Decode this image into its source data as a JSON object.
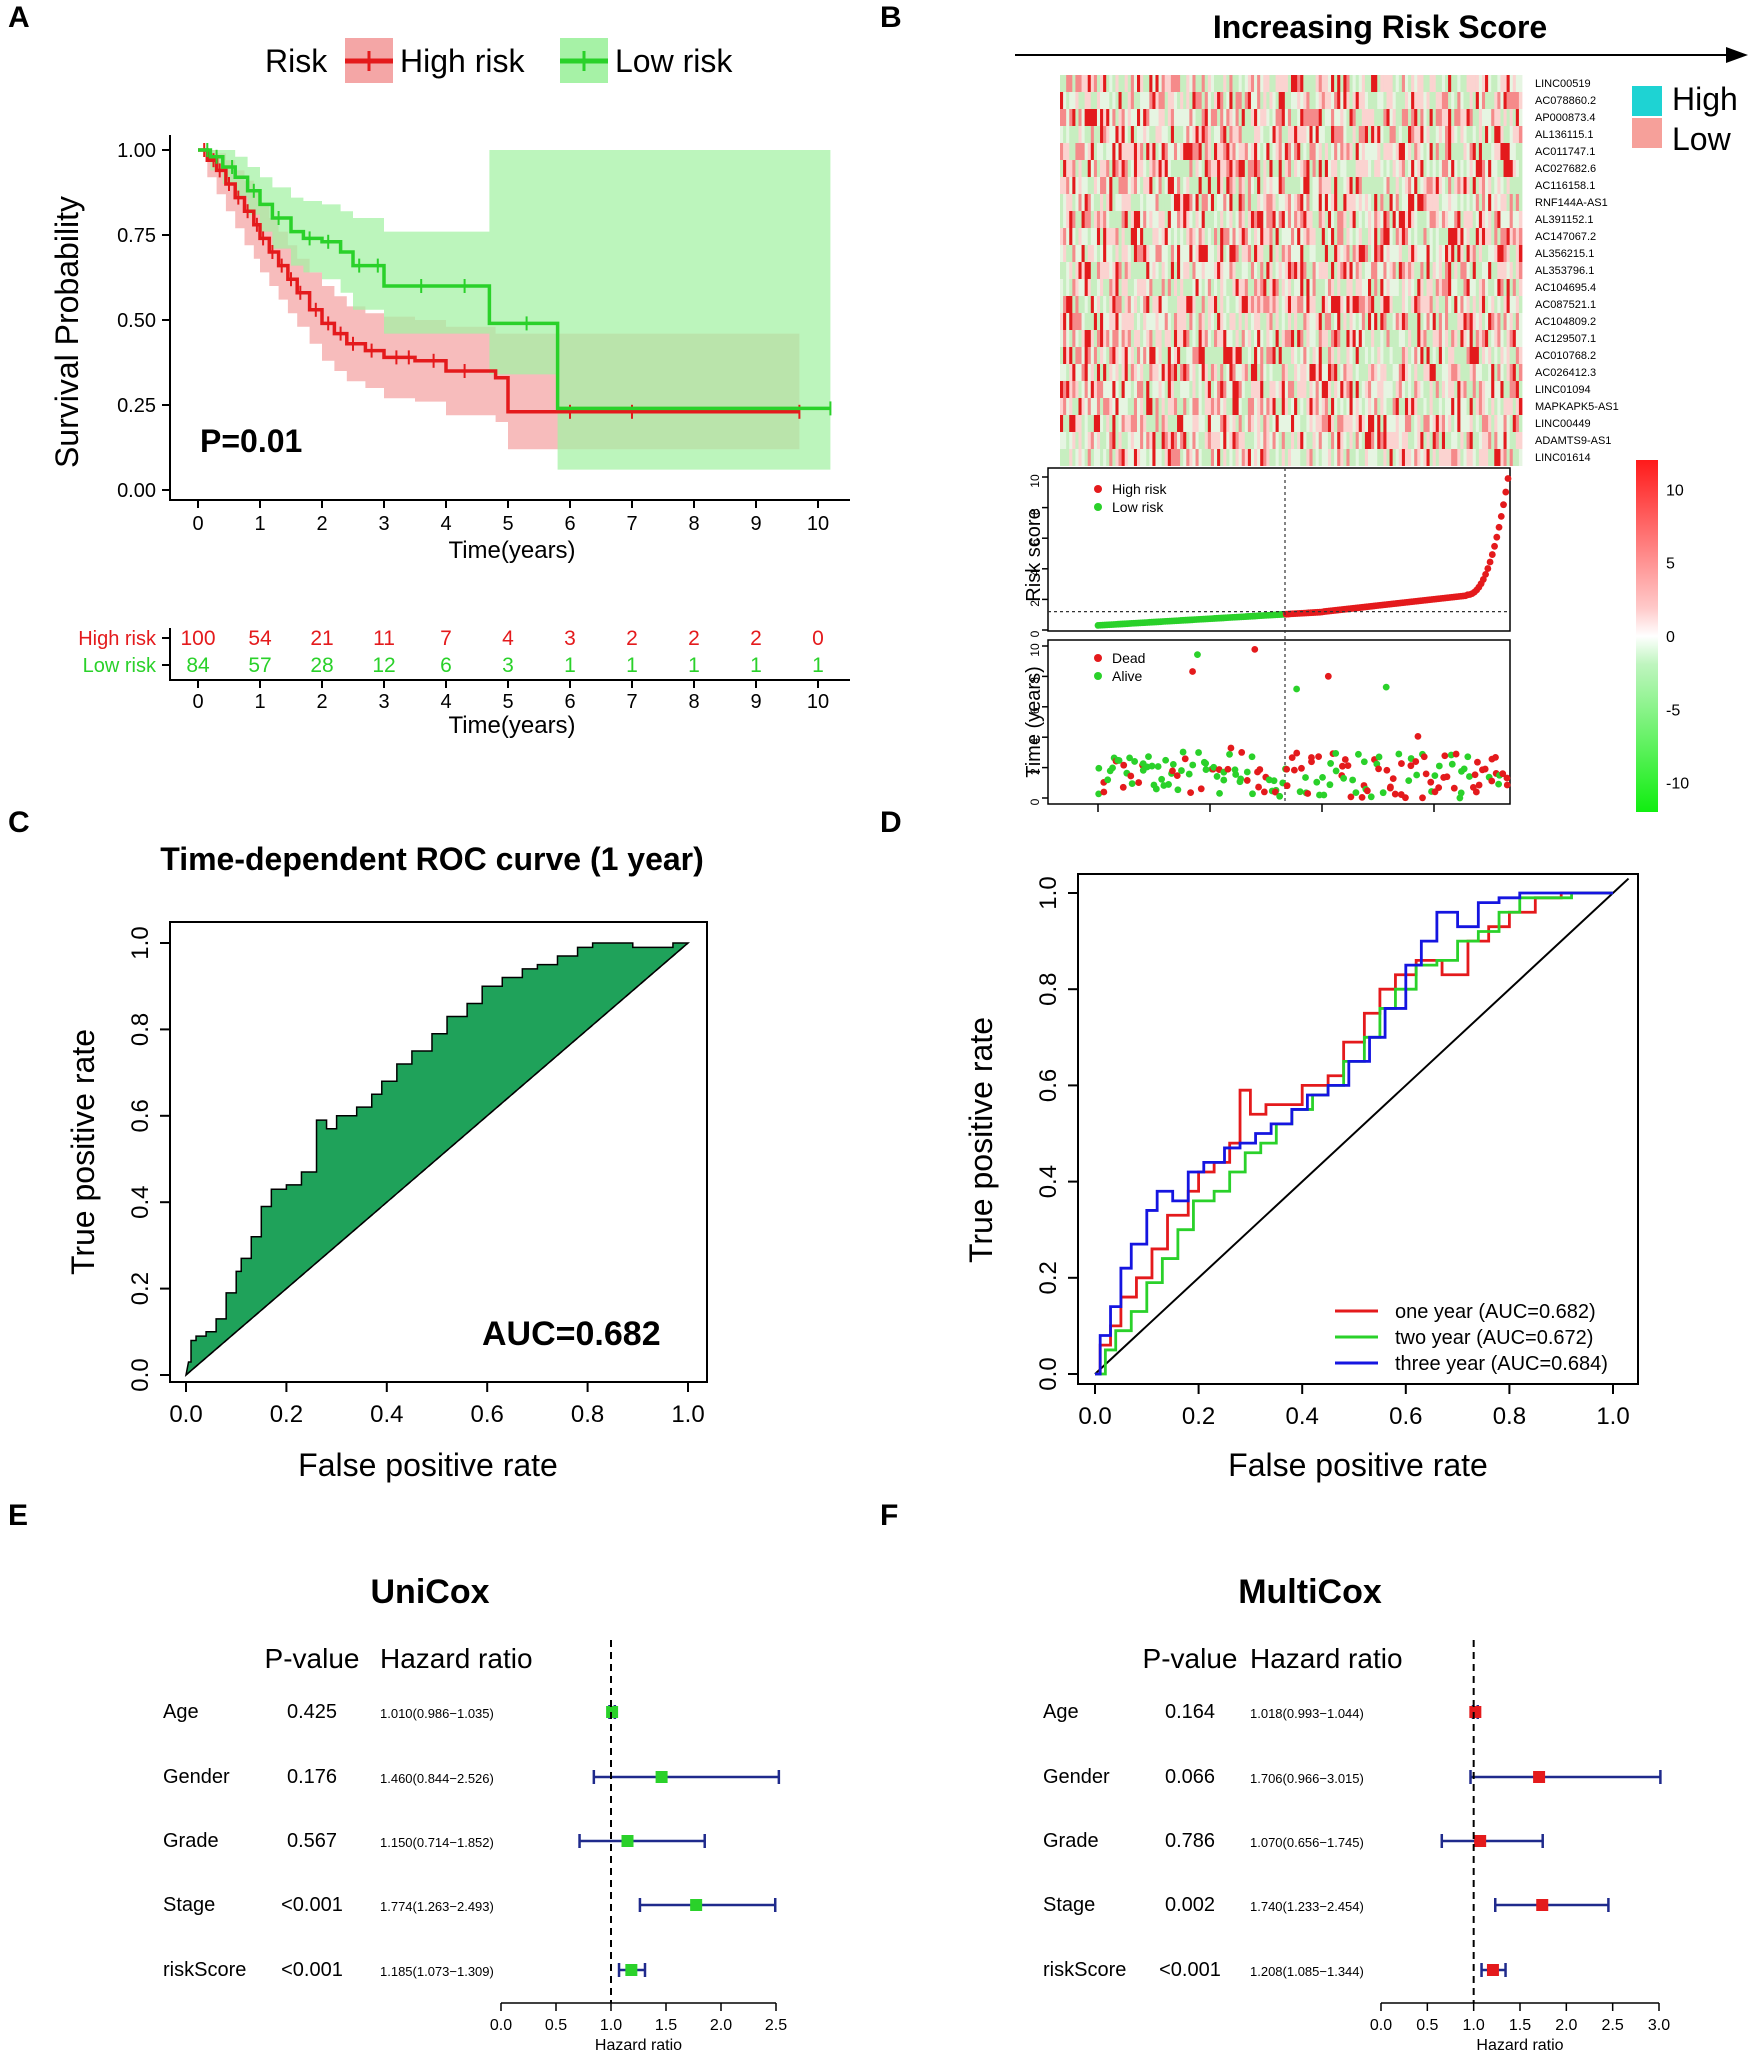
{
  "panel_letters": [
    "A",
    "B",
    "C",
    "D",
    "E",
    "F"
  ],
  "colors": {
    "high": "#e41a1c",
    "high_ci": "#f4a6a6",
    "low": "#2ad12a",
    "low_ci": "#a6f2a6",
    "overlap": "#c0c07a",
    "roc_fill": "#1fa25a",
    "blue": "#1515e0",
    "navy": "#1f2a8c",
    "legend_high": "#1ed3d3",
    "legend_low": "#f6a09a"
  },
  "chart_data": [
    {
      "id": "A",
      "type": "line",
      "title": "",
      "legend": {
        "title": "Risk",
        "entries": [
          "High risk",
          "Low risk"
        ]
      },
      "xlabel": "Time(years)",
      "ylabel": "Survival Probability",
      "xlim": [
        0,
        10
      ],
      "ylim": [
        0,
        1
      ],
      "xticks": [
        0,
        1,
        2,
        3,
        4,
        5,
        6,
        7,
        8,
        9,
        10
      ],
      "yticks": [
        "0.00",
        "0.25",
        "0.50",
        "0.75",
        "1.00"
      ],
      "annotation": "P=0.01",
      "series": [
        {
          "name": "High risk",
          "x": [
            0,
            0.15,
            0.3,
            0.45,
            0.6,
            0.75,
            0.9,
            1.0,
            1.15,
            1.3,
            1.45,
            1.6,
            1.8,
            2.0,
            2.2,
            2.4,
            2.7,
            3.0,
            3.5,
            4.0,
            4.8,
            5.0,
            6.0,
            7.0,
            9.7
          ],
          "y": [
            1.0,
            0.97,
            0.94,
            0.9,
            0.86,
            0.82,
            0.78,
            0.74,
            0.7,
            0.66,
            0.62,
            0.58,
            0.53,
            0.49,
            0.46,
            0.43,
            0.41,
            0.39,
            0.38,
            0.35,
            0.33,
            0.23,
            0.23,
            0.23,
            0.23
          ],
          "ci_lower": [
            1.0,
            0.92,
            0.87,
            0.82,
            0.77,
            0.72,
            0.68,
            0.64,
            0.6,
            0.56,
            0.52,
            0.48,
            0.43,
            0.38,
            0.35,
            0.32,
            0.3,
            0.27,
            0.26,
            0.22,
            0.2,
            0.12,
            0.12,
            0.12,
            0.12
          ],
          "ci_upper": [
            1.0,
            1.0,
            0.99,
            0.97,
            0.94,
            0.91,
            0.88,
            0.84,
            0.8,
            0.76,
            0.72,
            0.68,
            0.64,
            0.6,
            0.57,
            0.54,
            0.52,
            0.51,
            0.5,
            0.48,
            0.46,
            0.46,
            0.46,
            0.46,
            0.46
          ],
          "censor_x": [
            0.1,
            0.25,
            0.35,
            0.5,
            0.65,
            0.8,
            0.95,
            1.05,
            1.2,
            1.35,
            1.5,
            1.65,
            1.9,
            2.1,
            2.3,
            2.5,
            2.8,
            3.2,
            3.4,
            3.8,
            4.3,
            6.0,
            7.0,
            9.7
          ]
        },
        {
          "name": "Low risk",
          "x": [
            0,
            0.2,
            0.4,
            0.6,
            0.8,
            1.0,
            1.2,
            1.5,
            1.7,
            2.0,
            2.3,
            2.5,
            3.0,
            3.5,
            4.0,
            4.7,
            5.0,
            5.8,
            8.0,
            10.2
          ],
          "y": [
            1.0,
            0.98,
            0.95,
            0.92,
            0.88,
            0.84,
            0.8,
            0.76,
            0.74,
            0.73,
            0.7,
            0.66,
            0.6,
            0.6,
            0.6,
            0.49,
            0.49,
            0.24,
            0.24,
            0.24
          ],
          "ci_lower": [
            1.0,
            0.94,
            0.9,
            0.86,
            0.81,
            0.76,
            0.71,
            0.66,
            0.64,
            0.62,
            0.58,
            0.53,
            0.46,
            0.46,
            0.46,
            0.34,
            0.34,
            0.06,
            0.06,
            0.06
          ],
          "ci_upper": [
            1.0,
            1.0,
            1.0,
            0.98,
            0.95,
            0.92,
            0.89,
            0.86,
            0.85,
            0.84,
            0.82,
            0.8,
            0.76,
            0.76,
            0.76,
            1.0,
            1.0,
            1.0,
            1.0,
            1.0
          ],
          "censor_x": [
            0.15,
            0.3,
            0.55,
            0.9,
            1.3,
            1.8,
            2.1,
            2.6,
            2.9,
            3.6,
            4.3,
            5.3,
            10.2
          ]
        }
      ],
      "risk_table": {
        "xlabel": "Time(years)",
        "rows": [
          {
            "name": "High risk",
            "values": [
              100,
              54,
              21,
              11,
              7,
              4,
              3,
              2,
              2,
              2,
              0
            ]
          },
          {
            "name": "Low risk",
            "values": [
              84,
              57,
              28,
              12,
              6,
              3,
              1,
              1,
              1,
              1,
              1
            ]
          }
        ]
      }
    },
    {
      "id": "B",
      "type": "heatmap",
      "title": "Increasing Risk Score",
      "genes": [
        "LINC00519",
        "AC078860.2",
        "AP000873.4",
        "AL136115.1",
        "AC011747.1",
        "AC027682.6",
        "AC116158.1",
        "RNF144A-AS1",
        "AL391152.1",
        "AC147067.2",
        "AL356215.1",
        "AL353796.1",
        "AC104695.4",
        "AC087521.1",
        "AC104809.2",
        "AC129507.1",
        "AC010768.2",
        "AC026412.3",
        "LINC01094",
        "MAPKAPK5-AS1",
        "LINC00449",
        "ADAMTS9-AS1",
        "LINC01614"
      ],
      "legend": [
        "High",
        "Low"
      ],
      "colorbar_ticks": [
        "10",
        "5",
        "0",
        "-5",
        "-10"
      ],
      "colorbar_range": [
        -12,
        12
      ],
      "risk_plot": {
        "ylabel": "Risk score",
        "yticks": [
          0,
          2,
          4,
          6,
          8,
          10
        ],
        "ylim": [
          0,
          10
        ],
        "cutoff": 1.2,
        "legend": [
          "High risk",
          "Low risk"
        ]
      },
      "survival_scatter": {
        "ylabel": "Time (years)",
        "yticks": [
          0,
          2,
          4,
          6,
          8,
          10
        ],
        "ylim": [
          0,
          10
        ],
        "legend": [
          "Dead",
          "Alive"
        ]
      }
    },
    {
      "id": "C",
      "type": "area",
      "title": "Time-dependent ROC curve (1 year)",
      "xlabel": "False positive rate",
      "ylabel": "True positive rate",
      "xlim": [
        0,
        1
      ],
      "ylim": [
        0,
        1
      ],
      "xticks": [
        "0.0",
        "0.2",
        "0.4",
        "0.6",
        "0.8",
        "1.0"
      ],
      "yticks": [
        "0.0",
        "0.2",
        "0.4",
        "0.6",
        "0.8",
        "1.0"
      ],
      "annotation": "AUC=0.682",
      "x": [
        0,
        0.005,
        0.01,
        0.01,
        0.02,
        0.02,
        0.04,
        0.04,
        0.06,
        0.06,
        0.08,
        0.08,
        0.1,
        0.1,
        0.11,
        0.11,
        0.13,
        0.13,
        0.15,
        0.15,
        0.17,
        0.17,
        0.2,
        0.2,
        0.23,
        0.23,
        0.26,
        0.26,
        0.28,
        0.28,
        0.3,
        0.3,
        0.34,
        0.34,
        0.37,
        0.37,
        0.39,
        0.39,
        0.42,
        0.42,
        0.45,
        0.45,
        0.49,
        0.49,
        0.52,
        0.52,
        0.56,
        0.56,
        0.59,
        0.59,
        0.63,
        0.63,
        0.67,
        0.67,
        0.7,
        0.7,
        0.74,
        0.74,
        0.78,
        0.78,
        0.81,
        0.81,
        0.85,
        0.85,
        0.89,
        0.89,
        0.93,
        0.93,
        0.97,
        0.97,
        1.0
      ],
      "y": [
        0,
        0.03,
        0.03,
        0.08,
        0.08,
        0.09,
        0.09,
        0.1,
        0.1,
        0.13,
        0.13,
        0.19,
        0.19,
        0.24,
        0.24,
        0.27,
        0.27,
        0.32,
        0.32,
        0.39,
        0.39,
        0.43,
        0.43,
        0.44,
        0.44,
        0.47,
        0.47,
        0.59,
        0.59,
        0.57,
        0.57,
        0.6,
        0.6,
        0.62,
        0.62,
        0.65,
        0.65,
        0.68,
        0.68,
        0.72,
        0.72,
        0.75,
        0.75,
        0.79,
        0.79,
        0.83,
        0.83,
        0.86,
        0.86,
        0.9,
        0.9,
        0.92,
        0.92,
        0.94,
        0.94,
        0.95,
        0.95,
        0.97,
        0.97,
        0.99,
        0.99,
        1.0,
        1.0,
        1.0,
        1.0,
        0.99,
        0.99,
        0.99,
        0.99,
        1.0,
        1.0
      ]
    },
    {
      "id": "D",
      "type": "line",
      "title": "",
      "xlabel": "False positive rate",
      "ylabel": "True positive rate",
      "xlim": [
        0,
        1
      ],
      "ylim": [
        0,
        1
      ],
      "xticks": [
        "0.0",
        "0.2",
        "0.4",
        "0.6",
        "0.8",
        "1.0"
      ],
      "yticks": [
        "0.0",
        "0.2",
        "0.4",
        "0.6",
        "0.8",
        "1.0"
      ],
      "series": [
        {
          "name": "one year (AUC=0.682)",
          "x": [
            0,
            0.01,
            0.03,
            0.05,
            0.08,
            0.11,
            0.14,
            0.18,
            0.2,
            0.23,
            0.26,
            0.28,
            0.3,
            0.33,
            0.37,
            0.4,
            0.45,
            0.48,
            0.52,
            0.55,
            0.58,
            0.62,
            0.67,
            0.72,
            0.76,
            0.8,
            0.85,
            0.9,
            0.95,
            1.0
          ],
          "y": [
            0,
            0.06,
            0.1,
            0.16,
            0.2,
            0.26,
            0.33,
            0.38,
            0.42,
            0.44,
            0.48,
            0.59,
            0.54,
            0.56,
            0.56,
            0.6,
            0.62,
            0.69,
            0.75,
            0.8,
            0.83,
            0.86,
            0.83,
            0.9,
            0.93,
            0.96,
            0.99,
            1.0,
            1.0,
            1.0
          ]
        },
        {
          "name": "two year (AUC=0.672)",
          "x": [
            0,
            0.02,
            0.04,
            0.07,
            0.1,
            0.13,
            0.16,
            0.19,
            0.23,
            0.26,
            0.29,
            0.32,
            0.35,
            0.38,
            0.42,
            0.45,
            0.48,
            0.52,
            0.55,
            0.58,
            0.62,
            0.66,
            0.7,
            0.74,
            0.78,
            0.82,
            0.87,
            0.92,
            0.97,
            1.0
          ],
          "y": [
            0,
            0.05,
            0.09,
            0.13,
            0.19,
            0.24,
            0.3,
            0.36,
            0.38,
            0.42,
            0.46,
            0.48,
            0.52,
            0.55,
            0.58,
            0.6,
            0.65,
            0.7,
            0.76,
            0.8,
            0.85,
            0.86,
            0.9,
            0.92,
            0.96,
            0.99,
            0.99,
            1.0,
            1.0,
            1.0
          ]
        },
        {
          "name": "three year (AUC=0.684)",
          "x": [
            0,
            0.01,
            0.03,
            0.05,
            0.07,
            0.1,
            0.12,
            0.15,
            0.18,
            0.21,
            0.25,
            0.28,
            0.31,
            0.34,
            0.38,
            0.41,
            0.45,
            0.49,
            0.53,
            0.56,
            0.6,
            0.63,
            0.66,
            0.7,
            0.74,
            0.78,
            0.82,
            0.87,
            0.92,
            0.97,
            1.0
          ],
          "y": [
            0,
            0.08,
            0.14,
            0.22,
            0.27,
            0.34,
            0.38,
            0.36,
            0.42,
            0.44,
            0.47,
            0.48,
            0.5,
            0.52,
            0.55,
            0.58,
            0.6,
            0.65,
            0.7,
            0.76,
            0.85,
            0.9,
            0.96,
            0.93,
            0.98,
            0.99,
            1.0,
            1.0,
            1.0,
            1.0,
            1.0
          ]
        }
      ],
      "legend_placement": "bottom-right"
    },
    {
      "id": "E",
      "type": "forest",
      "title": "UniCox",
      "headers": [
        "P-value",
        "Hazard ratio"
      ],
      "xlabel": "Hazard ratio",
      "xticks": [
        "0.0",
        "0.5",
        "1.0",
        "1.5",
        "2.0",
        "2.5"
      ],
      "xlim": [
        0,
        2.5
      ],
      "reference": 1.0,
      "rows": [
        {
          "variable": "Age",
          "p": "0.425",
          "hr_text": "1.010(0.986−1.035)",
          "hr": 1.01,
          "low": 0.986,
          "high": 1.035
        },
        {
          "variable": "Gender",
          "p": "0.176",
          "hr_text": "1.460(0.844−2.526)",
          "hr": 1.46,
          "low": 0.844,
          "high": 2.526
        },
        {
          "variable": "Grade",
          "p": "0.567",
          "hr_text": "1.150(0.714−1.852)",
          "hr": 1.15,
          "low": 0.714,
          "high": 1.852
        },
        {
          "variable": "Stage",
          "p": "<0.001",
          "hr_text": "1.774(1.263−2.493)",
          "hr": 1.774,
          "low": 1.263,
          "high": 2.493
        },
        {
          "variable": "riskScore",
          "p": "<0.001",
          "hr_text": "1.185(1.073−1.309)",
          "hr": 1.185,
          "low": 1.073,
          "high": 1.309
        }
      ]
    },
    {
      "id": "F",
      "type": "forest",
      "title": "MultiCox",
      "headers": [
        "P-value",
        "Hazard ratio"
      ],
      "xlabel": "Hazard ratio",
      "xticks": [
        "0.0",
        "0.5",
        "1.0",
        "1.5",
        "2.0",
        "2.5",
        "3.0"
      ],
      "xlim": [
        0,
        3.0
      ],
      "reference": 1.0,
      "rows": [
        {
          "variable": "Age",
          "p": "0.164",
          "hr_text": "1.018(0.993−1.044)",
          "hr": 1.018,
          "low": 0.993,
          "high": 1.044
        },
        {
          "variable": "Gender",
          "p": "0.066",
          "hr_text": "1.706(0.966−3.015)",
          "hr": 1.706,
          "low": 0.966,
          "high": 3.015
        },
        {
          "variable": "Grade",
          "p": "0.786",
          "hr_text": "1.070(0.656−1.745)",
          "hr": 1.07,
          "low": 0.656,
          "high": 1.745
        },
        {
          "variable": "Stage",
          "p": "0.002",
          "hr_text": "1.740(1.233−2.454)",
          "hr": 1.74,
          "low": 1.233,
          "high": 2.454
        },
        {
          "variable": "riskScore",
          "p": "<0.001",
          "hr_text": "1.208(1.085−1.344)",
          "hr": 1.208,
          "low": 1.085,
          "high": 1.344
        }
      ]
    }
  ]
}
